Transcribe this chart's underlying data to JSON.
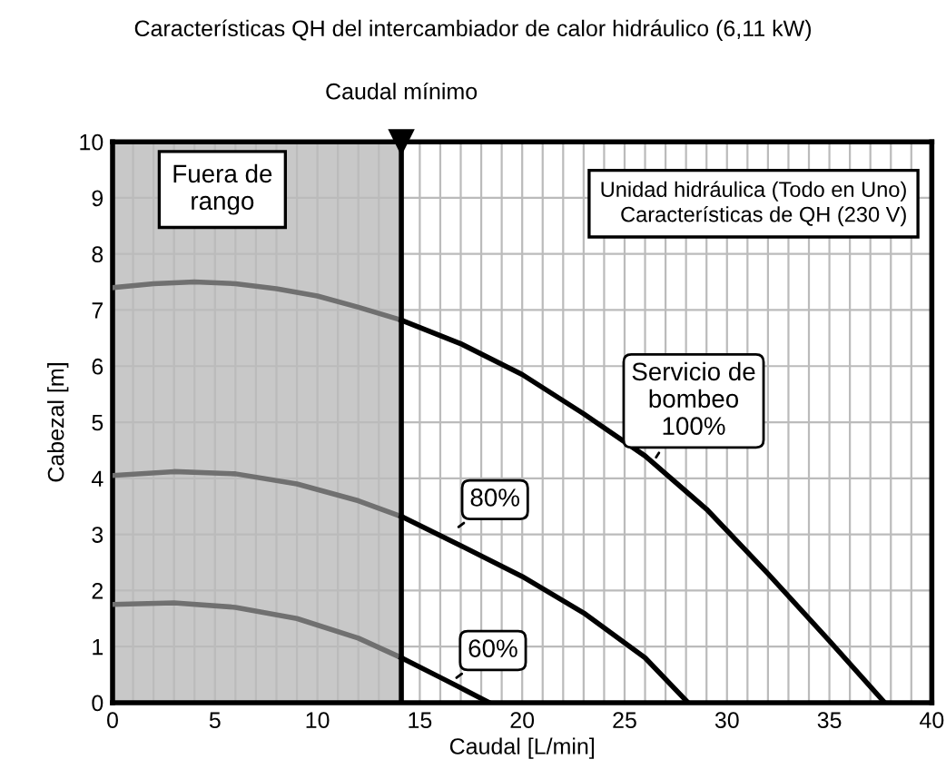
{
  "chart_data": {
    "type": "line",
    "title": "Características QH del intercambiador de calor hidráulico (6,11 kW)",
    "xlabel": "Caudal [L/min]",
    "ylabel": "Cabezal [m]",
    "xlim": [
      0,
      40
    ],
    "ylim": [
      0,
      10
    ],
    "xticks": [
      0,
      5,
      10,
      15,
      20,
      25,
      30,
      35,
      40
    ],
    "yticks": [
      0,
      1,
      2,
      3,
      4,
      5,
      6,
      7,
      8,
      9,
      10
    ],
    "grid": true,
    "marker": "none",
    "line_style": "solid",
    "series": [
      {
        "color": "#707070",
        "x": [
          0,
          2,
          4,
          6,
          8,
          10,
          12,
          14.1
        ],
        "values": [
          7.4,
          7.47,
          7.5,
          7.47,
          7.38,
          7.25,
          7.05,
          6.82
        ]
      },
      {
        "color": "#000000",
        "x": [
          14.1,
          17,
          20,
          23,
          26,
          29,
          32,
          35,
          37.7
        ],
        "values": [
          6.82,
          6.4,
          5.85,
          5.15,
          4.4,
          3.45,
          2.3,
          1.1,
          0
        ]
      },
      {
        "color": "#707070",
        "x": [
          0,
          3,
          6,
          9,
          12,
          14.1
        ],
        "values": [
          4.05,
          4.12,
          4.08,
          3.9,
          3.6,
          3.32
        ]
      },
      {
        "color": "#000000",
        "x": [
          14.1,
          17,
          20,
          23,
          26,
          28.1
        ],
        "values": [
          3.32,
          2.8,
          2.25,
          1.6,
          0.8,
          0
        ]
      },
      {
        "color": "#707070",
        "x": [
          0,
          3,
          6,
          9,
          12,
          14.1
        ],
        "values": [
          1.75,
          1.78,
          1.7,
          1.5,
          1.15,
          0.8
        ]
      },
      {
        "color": "#000000",
        "x": [
          14.1,
          16,
          18.4
        ],
        "values": [
          0.8,
          0.45,
          0
        ]
      }
    ],
    "bands": [
      {
        "axis": "x",
        "from": 0,
        "to": 14.1,
        "label": "Fuera de\nrango",
        "color": "#c8c8c8"
      }
    ],
    "ref_lines": [
      {
        "axis": "x",
        "value": 14.1,
        "label": "Caudal mínimo",
        "color": "#000000"
      }
    ],
    "annotations": [
      {
        "text": "Servicio de\nbombeo\n100%",
        "x": 26.4,
        "y": 4.3
      },
      {
        "text": "80%",
        "x": 16.7,
        "y": 3.08
      },
      {
        "text": "60%",
        "x": 16.6,
        "y": 0.39
      },
      "Unidad hidráulica (Todo en Uno)\nCaracterísticas de QH (230 V)"
    ]
  }
}
